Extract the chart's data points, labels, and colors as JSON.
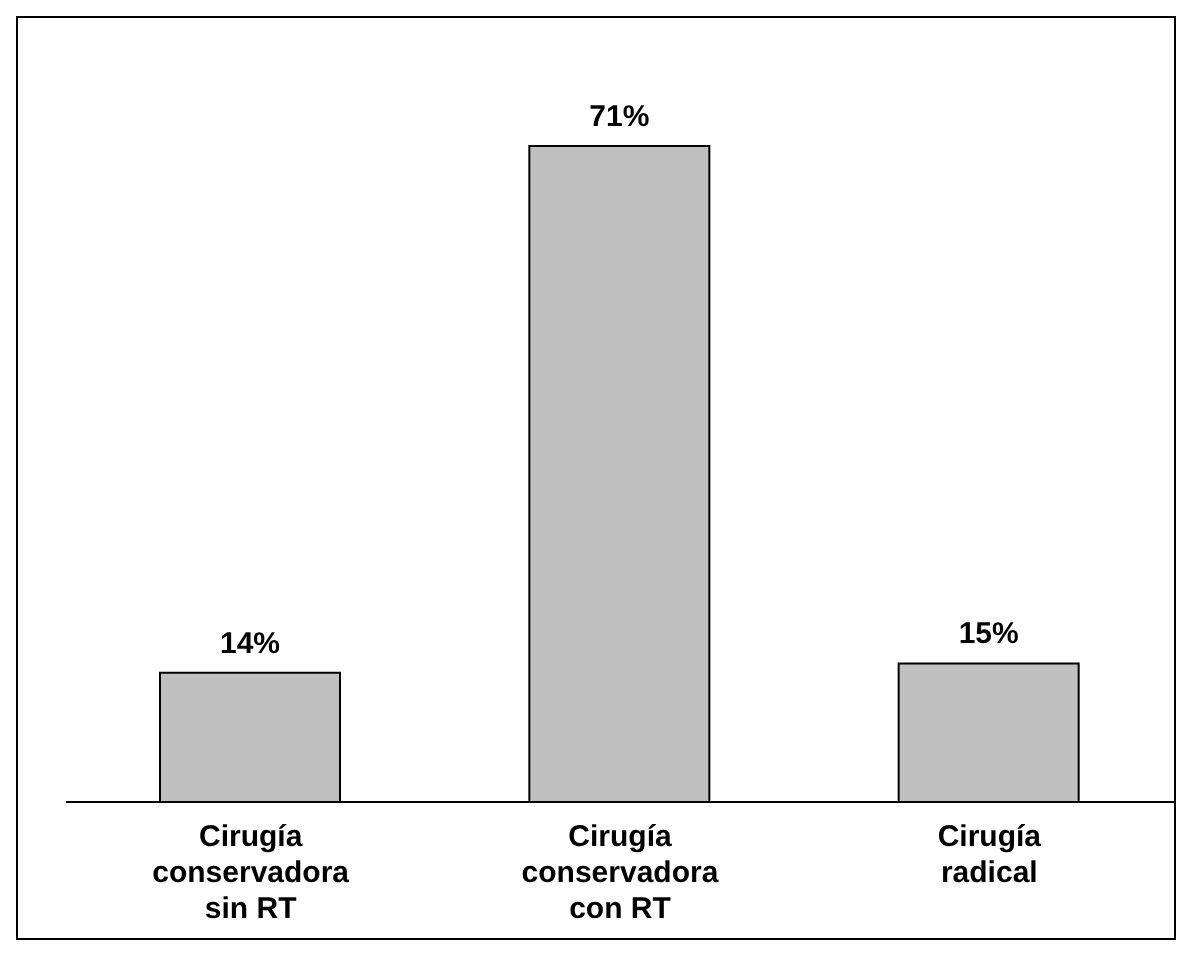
{
  "chart_data": {
    "type": "bar",
    "categories": [
      "Cirugía conservadora sin RT",
      "Cirugía conservadora con RT",
      "Cirugía radical"
    ],
    "values": [
      14,
      71,
      15
    ],
    "value_labels": [
      "14%",
      "71%",
      "15%"
    ],
    "color": "#c0c0c0",
    "tick_labels": "x"
  }
}
